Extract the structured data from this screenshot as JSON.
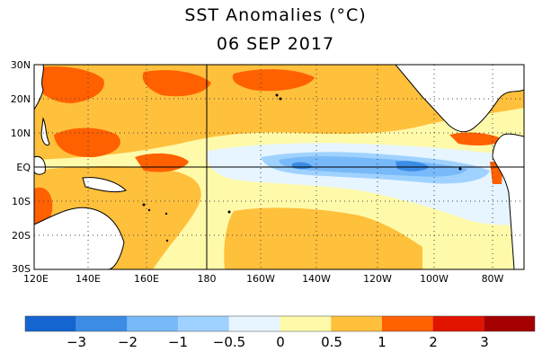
{
  "title": "SST Anomalies (°C)",
  "date": "06 SEP 2017",
  "map": {
    "region": "Tropical Pacific",
    "lat_labels": [
      "30N",
      "20N",
      "10N",
      "EQ",
      "10S",
      "20S",
      "30S"
    ],
    "lon_labels": [
      "120E",
      "140E",
      "160E",
      "180",
      "160W",
      "140W",
      "120W",
      "100W",
      "80W"
    ],
    "gridlines": "dotted"
  },
  "colorbar": {
    "labels": [
      "−3",
      "−2",
      "−1",
      "−0.5",
      "0",
      "0.5",
      "1",
      "2",
      "3"
    ],
    "colors": [
      "#1464d2",
      "#3c8ce6",
      "#78b9fa",
      "#a0d2ff",
      "#e6f5ff",
      "#fffaaa",
      "#ffc03c",
      "#ff6000",
      "#e11400",
      "#a50000"
    ]
  },
  "colors": {
    "land": "#ffffff",
    "coast": "#000000",
    "ocean_neutral": "#e6f5ff"
  }
}
